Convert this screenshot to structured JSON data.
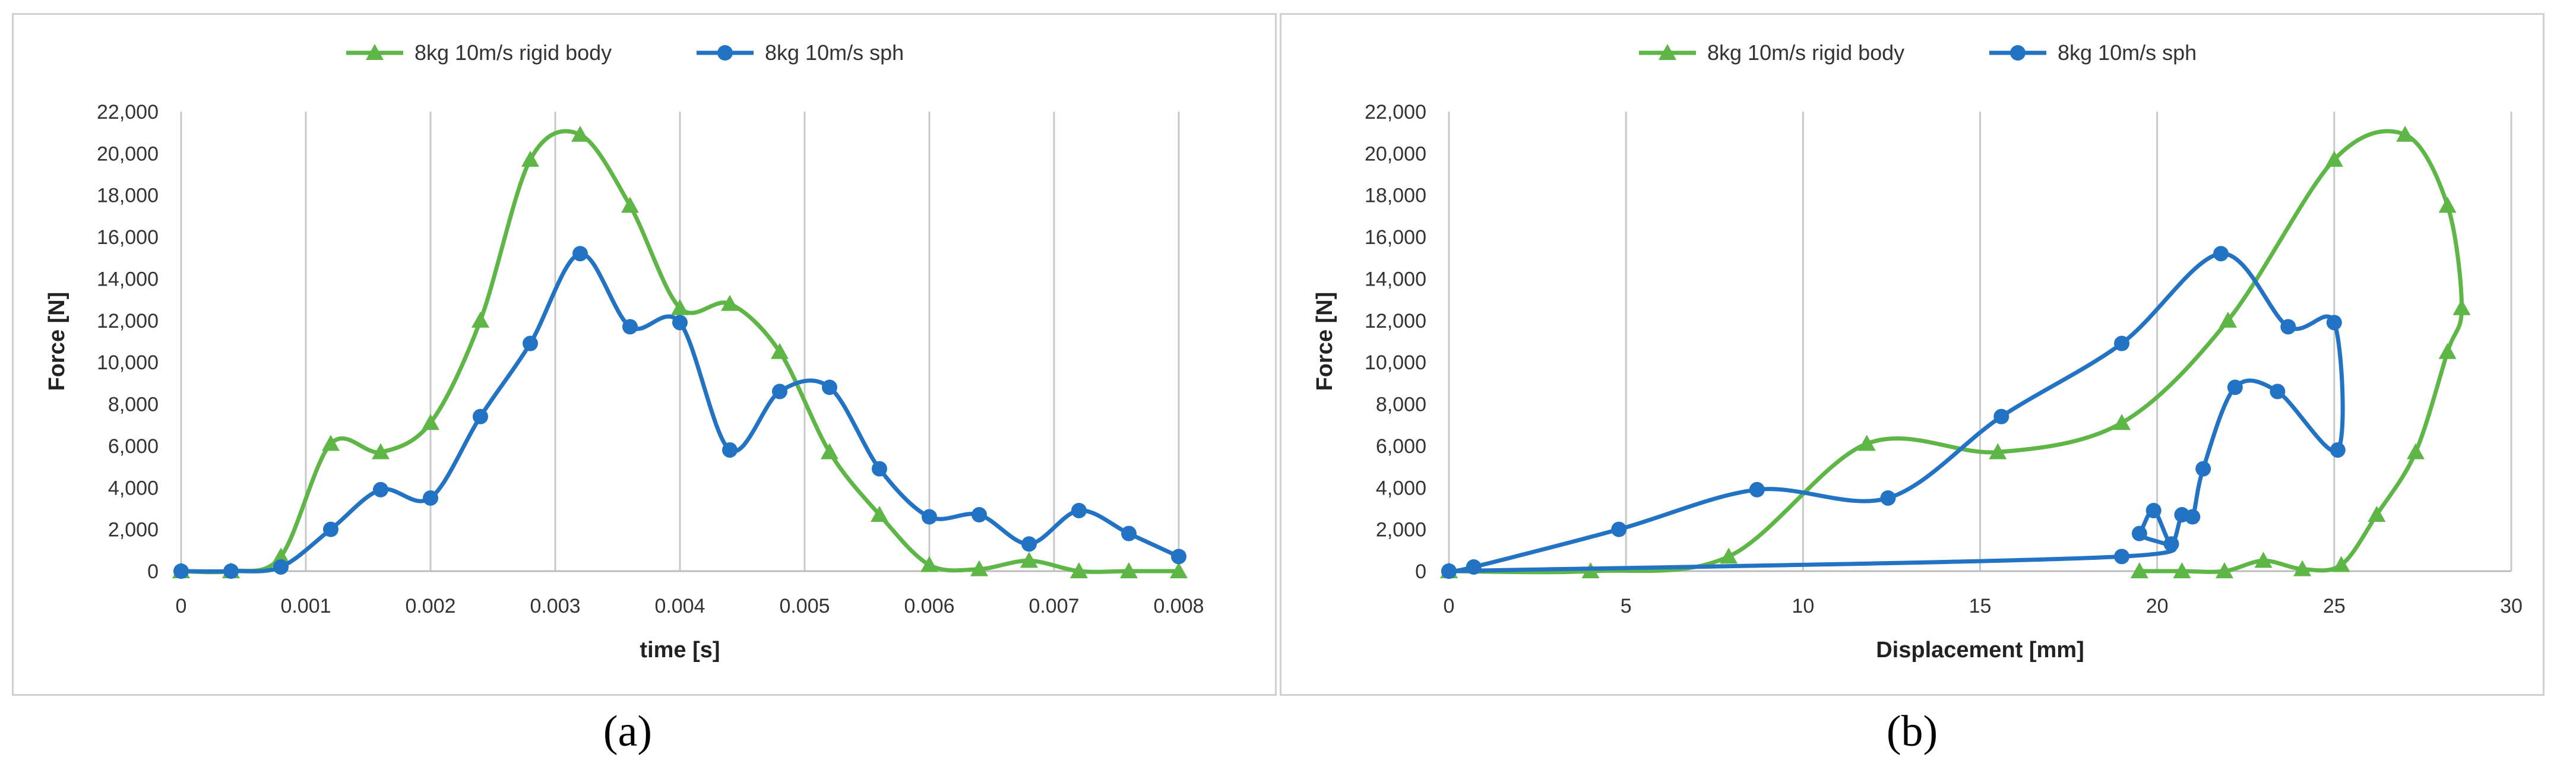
{
  "chart_data": [
    {
      "type": "scatter",
      "panel": "a",
      "xlabel": "time [s]",
      "ylabel": "Force [N]",
      "xlim": [
        0,
        0.008
      ],
      "ylim": [
        0,
        22000
      ],
      "xticks": [
        "0",
        "0.001",
        "0.002",
        "0.003",
        "0.004",
        "0.005",
        "0.006",
        "0.007",
        "0.008"
      ],
      "yticks": [
        "0",
        "2,000",
        "4,000",
        "6,000",
        "8,000",
        "10,000",
        "12,000",
        "14,000",
        "16,000",
        "18,000",
        "20,000",
        "22,000"
      ],
      "grid": "vertical",
      "legend_position": "top-center",
      "series": [
        {
          "name": "8kg 10m/s rigid body",
          "color": "#5db645",
          "marker": "triangle",
          "points": [
            [
              0,
              0
            ],
            [
              0.0004,
              0
            ],
            [
              0.0008,
              700
            ],
            [
              0.0012,
              6100
            ],
            [
              0.0016,
              5700
            ],
            [
              0.002,
              7100
            ],
            [
              0.0024,
              12000
            ],
            [
              0.0028,
              19700
            ],
            [
              0.0032,
              20900
            ],
            [
              0.0036,
              17500
            ],
            [
              0.004,
              12600
            ],
            [
              0.0044,
              12800
            ],
            [
              0.0048,
              10500
            ],
            [
              0.0052,
              5700
            ],
            [
              0.0056,
              2700
            ],
            [
              0.006,
              300
            ],
            [
              0.0064,
              100
            ],
            [
              0.0068,
              500
            ],
            [
              0.0072,
              0
            ],
            [
              0.0076,
              0
            ],
            [
              0.008,
              0
            ]
          ]
        },
        {
          "name": "8kg 10m/s sph",
          "color": "#2273c4",
          "marker": "circle",
          "points": [
            [
              0,
              0
            ],
            [
              0.0004,
              0
            ],
            [
              0.0008,
              200
            ],
            [
              0.0012,
              2000
            ],
            [
              0.0016,
              3900
            ],
            [
              0.002,
              3500
            ],
            [
              0.0024,
              7400
            ],
            [
              0.0028,
              10900
            ],
            [
              0.0032,
              15200
            ],
            [
              0.0036,
              11700
            ],
            [
              0.004,
              11900
            ],
            [
              0.0044,
              5800
            ],
            [
              0.0048,
              8600
            ],
            [
              0.0052,
              8800
            ],
            [
              0.0056,
              4900
            ],
            [
              0.006,
              2600
            ],
            [
              0.0064,
              2700
            ],
            [
              0.0068,
              1300
            ],
            [
              0.0072,
              2900
            ],
            [
              0.0076,
              1800
            ],
            [
              0.008,
              700
            ]
          ]
        }
      ]
    },
    {
      "type": "scatter",
      "panel": "b",
      "xlabel": "Displacement [mm]",
      "ylabel": "Force [N]",
      "xlim": [
        0,
        30
      ],
      "ylim": [
        0,
        22000
      ],
      "xticks": [
        "0",
        "5",
        "10",
        "15",
        "20",
        "25",
        "30"
      ],
      "yticks": [
        "0",
        "2,000",
        "4,000",
        "6,000",
        "8,000",
        "10,000",
        "12,000",
        "14,000",
        "16,000",
        "18,000",
        "20,000",
        "22,000"
      ],
      "grid": "vertical",
      "legend_position": "top-center",
      "series": [
        {
          "name": "8kg 10m/s rigid body",
          "color": "#5db645",
          "marker": "triangle",
          "points": [
            [
              0,
              0
            ],
            [
              4.0,
              0
            ],
            [
              7.9,
              700
            ],
            [
              11.8,
              6100
            ],
            [
              15.5,
              5700
            ],
            [
              19.0,
              7100
            ],
            [
              22.0,
              12000
            ],
            [
              25.0,
              19700
            ],
            [
              27.0,
              20900
            ],
            [
              28.2,
              17500
            ],
            [
              28.6,
              12600
            ],
            [
              28.2,
              10500
            ],
            [
              27.3,
              5700
            ],
            [
              26.2,
              2700
            ],
            [
              25.2,
              300
            ],
            [
              24.1,
              100
            ],
            [
              23.0,
              500
            ],
            [
              21.9,
              0
            ],
            [
              20.7,
              0
            ],
            [
              19.5,
              0
            ]
          ]
        },
        {
          "name": "8kg 10m/s sph",
          "color": "#2273c4",
          "marker": "circle",
          "points": [
            [
              0,
              0
            ],
            [
              0.7,
              200
            ],
            [
              4.8,
              2000
            ],
            [
              8.7,
              3900
            ],
            [
              12.4,
              3500
            ],
            [
              15.6,
              7400
            ],
            [
              19.0,
              10900
            ],
            [
              21.8,
              15200
            ],
            [
              23.7,
              11700
            ],
            [
              25.0,
              11900
            ],
            [
              25.1,
              5800
            ],
            [
              23.4,
              8600
            ],
            [
              22.2,
              8800
            ],
            [
              21.3,
              4900
            ],
            [
              21.0,
              2600
            ],
            [
              20.7,
              2700
            ],
            [
              20.4,
              1300
            ],
            [
              19.9,
              2900
            ],
            [
              19.5,
              1800
            ],
            [
              19.0,
              700
            ],
            [
              0,
              0
            ]
          ]
        }
      ]
    }
  ],
  "captions": {
    "a": "(a)",
    "b": "(b)"
  }
}
